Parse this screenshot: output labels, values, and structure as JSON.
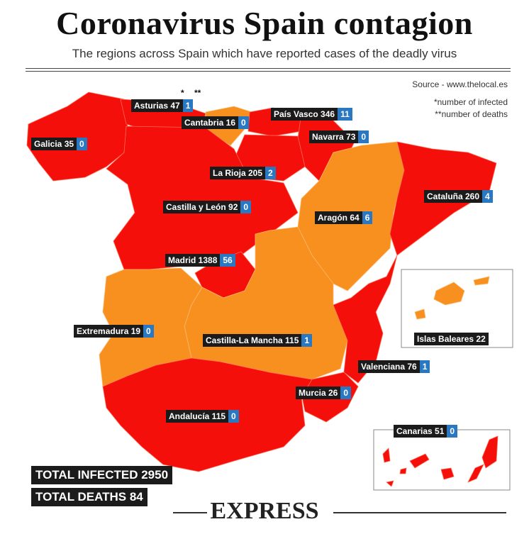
{
  "title": "Coronavirus Spain contagion",
  "subtitle": "The regions across Spain which have reported cases of the deadly virus",
  "source": "Source - www.thelocal.es",
  "legend": {
    "infected_marker": "*",
    "deaths_marker": "**",
    "infected_note": "*number of infected",
    "deaths_note": "**number of deaths"
  },
  "colors": {
    "high": "#f40f0a",
    "low": "#f7901e",
    "land": "#ffffff",
    "sea": "#ffffff",
    "label_bg": "#1b1b1b",
    "deaths_bg": "#2a78c2"
  },
  "regions": [
    {
      "id": "asturias",
      "label": "Asturias 47",
      "infected": 47,
      "deaths": "1"
    },
    {
      "id": "cantabria",
      "label": "Cantabria 16",
      "infected": 16,
      "deaths": "0"
    },
    {
      "id": "pais-vasco",
      "label": "País Vasco 346",
      "infected": 346,
      "deaths": "11"
    },
    {
      "id": "galicia",
      "label": "Galicia 35",
      "infected": 35,
      "deaths": "0"
    },
    {
      "id": "navarra",
      "label": "Navarra 73",
      "infected": 73,
      "deaths": "0"
    },
    {
      "id": "la-rioja",
      "label": "La Rioja 205",
      "infected": 205,
      "deaths": "2"
    },
    {
      "id": "cataluna",
      "label": "Cataluña 260",
      "infected": 260,
      "deaths": "4"
    },
    {
      "id": "castilla-y-leon",
      "label": "Castilla y León 92",
      "infected": 92,
      "deaths": "0"
    },
    {
      "id": "aragon",
      "label": "Aragón 64",
      "infected": 64,
      "deaths": "6"
    },
    {
      "id": "madrid",
      "label": "Madrid 1388",
      "infected": 1388,
      "deaths": "56"
    },
    {
      "id": "extremadura",
      "label": "Extremadura 19",
      "infected": 19,
      "deaths": "0"
    },
    {
      "id": "castilla-la-mancha",
      "label": "Castilla-La Mancha 115",
      "infected": 115,
      "deaths": "1"
    },
    {
      "id": "islas-baleares",
      "label": "Islas Baleares 22",
      "infected": 22,
      "deaths": null
    },
    {
      "id": "valenciana",
      "label": "Valenciana 76",
      "infected": 76,
      "deaths": "1"
    },
    {
      "id": "murcia",
      "label": "Murcia 26",
      "infected": 26,
      "deaths": "0"
    },
    {
      "id": "andalucia",
      "label": "Andalucía 115",
      "infected": 115,
      "deaths": "0"
    },
    {
      "id": "canarias",
      "label": "Canarias 51",
      "infected": 51,
      "deaths": "0"
    }
  ],
  "totals": {
    "infected": "TOTAL INFECTED 2950",
    "deaths": "TOTAL DEATHS 84"
  },
  "brand": "EXPRESS"
}
